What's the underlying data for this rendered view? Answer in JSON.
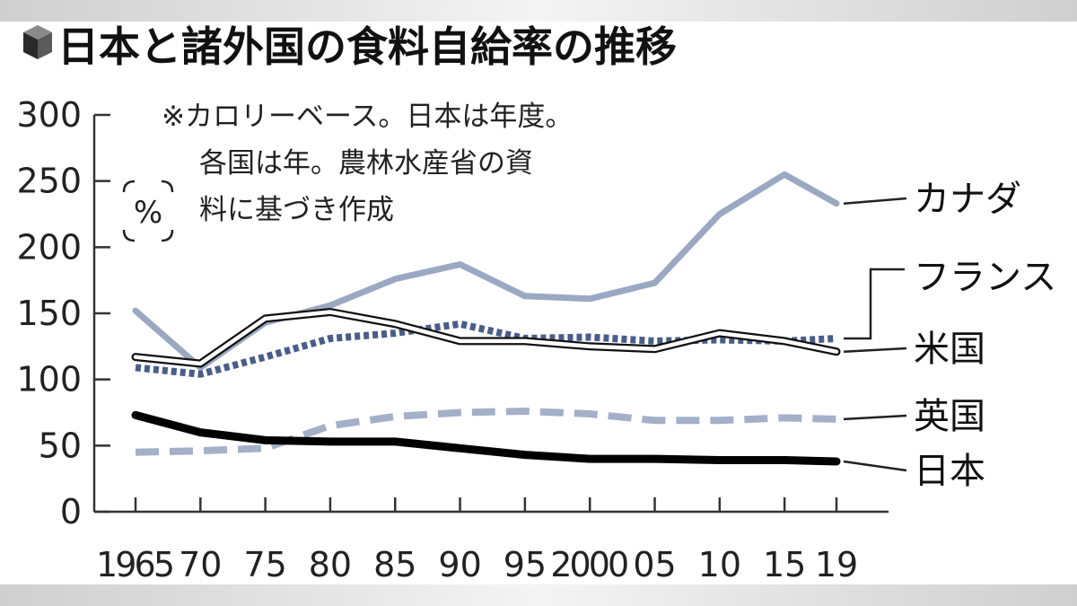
{
  "chart_data": {
    "type": "line",
    "title": "日本と諸外国の食料自給率の推移",
    "note_lines": [
      "※カロリーベース。日本は年度。",
      "各国は年。農林水産省の資",
      "料に基づき作成"
    ],
    "unit": "%",
    "x_tick_labels": [
      "1965",
      "70",
      "75",
      "80",
      "85",
      "90",
      "95",
      "2000",
      "05",
      "10",
      "15",
      "19"
    ],
    "x": [
      1965,
      1970,
      1975,
      1980,
      1985,
      1990,
      1995,
      2000,
      2005,
      2010,
      2015,
      2019
    ],
    "y_ticks": [
      0,
      50,
      100,
      150,
      200,
      250,
      300
    ],
    "ylim": [
      0,
      300
    ],
    "grid": false,
    "legend_placement": "right",
    "series": [
      {
        "name": "カナダ",
        "color": "#9aa8c2",
        "style": "solid",
        "values": [
          152,
          109,
          143,
          156,
          176,
          187,
          163,
          161,
          173,
          225,
          255,
          233
        ]
      },
      {
        "name": "フランス",
        "color": "#4a5d8a",
        "style": "dotted",
        "values": [
          109,
          104,
          117,
          131,
          135,
          142,
          131,
          132,
          129,
          130,
          129,
          131
        ]
      },
      {
        "name": "米国",
        "color": "#111111",
        "style": "double",
        "values": [
          117,
          112,
          146,
          151,
          142,
          129,
          129,
          125,
          123,
          135,
          129,
          121
        ]
      },
      {
        "name": "英国",
        "color": "#a4b0c8",
        "style": "dashed",
        "values": [
          45,
          46,
          48,
          65,
          72,
          75,
          76,
          74,
          69,
          69,
          71,
          70
        ]
      },
      {
        "name": "日本",
        "color": "#000000",
        "style": "thick",
        "values": [
          73,
          60,
          54,
          53,
          53,
          48,
          43,
          40,
          40,
          39,
          39,
          38
        ]
      }
    ]
  }
}
